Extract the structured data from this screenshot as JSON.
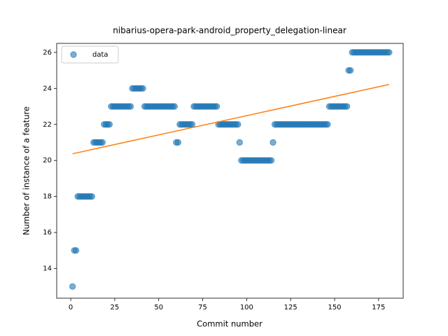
{
  "chart_data": [
    {
      "type": "scatter_fit",
      "title": "nibarius-opera-park-android_property_delegation-linear",
      "xlabel": "Commit number",
      "ylabel": "Number of instance of a feature",
      "xlim": [
        -8,
        189
      ],
      "ylim": [
        12.35,
        26.5
      ],
      "xticks": [
        0,
        25,
        50,
        75,
        100,
        125,
        150,
        175
      ],
      "yticks": [
        14,
        16,
        18,
        20,
        22,
        24,
        26
      ],
      "legend": "upper left",
      "series": [
        {
          "name": "data",
          "kind": "scatter",
          "color": "#1f77b4",
          "x": [
            1,
            2,
            3,
            4,
            5,
            6,
            7,
            8,
            9,
            10,
            11,
            12,
            13,
            14,
            15,
            16,
            17,
            18,
            19,
            20,
            21,
            22,
            23,
            24,
            25,
            26,
            27,
            28,
            29,
            30,
            31,
            32,
            33,
            34,
            35,
            36,
            37,
            38,
            39,
            40,
            41,
            42,
            43,
            44,
            45,
            46,
            47,
            48,
            49,
            50,
            51,
            52,
            53,
            54,
            55,
            56,
            57,
            58,
            59,
            60,
            61,
            62,
            63,
            64,
            65,
            66,
            67,
            68,
            69,
            70,
            71,
            72,
            73,
            74,
            75,
            76,
            77,
            78,
            79,
            80,
            81,
            82,
            83,
            84,
            85,
            86,
            87,
            88,
            89,
            90,
            91,
            92,
            93,
            94,
            95,
            96,
            97,
            98,
            99,
            100,
            101,
            102,
            103,
            104,
            105,
            106,
            107,
            108,
            109,
            110,
            111,
            112,
            113,
            114,
            115,
            116,
            117,
            118,
            119,
            120,
            121,
            122,
            123,
            124,
            125,
            126,
            127,
            128,
            129,
            130,
            131,
            132,
            133,
            134,
            135,
            136,
            137,
            138,
            139,
            140,
            141,
            142,
            143,
            144,
            145,
            146,
            147,
            148,
            149,
            150,
            151,
            152,
            153,
            154,
            155,
            156,
            157,
            158,
            159,
            160,
            161,
            162,
            163,
            164,
            165,
            166,
            167,
            168,
            169,
            170,
            171,
            172,
            173,
            174,
            175,
            176,
            177,
            178,
            179,
            180,
            181
          ],
          "values": [
            13,
            15,
            15,
            18,
            18,
            18,
            18,
            18,
            18,
            18,
            18,
            18,
            21,
            21,
            21,
            21,
            21,
            21,
            22,
            22,
            22,
            22,
            23,
            23,
            23,
            23,
            23,
            23,
            23,
            23,
            23,
            23,
            23,
            23,
            24,
            24,
            24,
            24,
            24,
            24,
            24,
            23,
            23,
            23,
            23,
            23,
            23,
            23,
            23,
            23,
            23,
            23,
            23,
            23,
            23,
            23,
            23,
            23,
            23,
            21,
            21,
            22,
            22,
            22,
            22,
            22,
            22,
            22,
            22,
            23,
            23,
            23,
            23,
            23,
            23,
            23,
            23,
            23,
            23,
            23,
            23,
            23,
            23,
            22,
            22,
            22,
            22,
            22,
            22,
            22,
            22,
            22,
            22,
            22,
            22,
            21,
            20,
            20,
            20,
            20,
            20,
            20,
            20,
            20,
            20,
            20,
            20,
            20,
            20,
            20,
            20,
            20,
            20,
            20,
            21,
            22,
            22,
            22,
            22,
            22,
            22,
            22,
            22,
            22,
            22,
            22,
            22,
            22,
            22,
            22,
            22,
            22,
            22,
            22,
            22,
            22,
            22,
            22,
            22,
            22,
            22,
            22,
            22,
            22,
            22,
            22,
            23,
            23,
            23,
            23,
            23,
            23,
            23,
            23,
            23,
            23,
            23,
            25,
            25,
            26,
            26,
            26,
            26,
            26,
            26,
            26,
            26,
            26,
            26,
            26,
            26,
            26,
            26,
            26,
            26,
            26,
            26,
            26,
            26,
            26,
            26
          ]
        },
        {
          "kind": "line",
          "color": "#ff7f0e",
          "x": [
            1,
            181
          ],
          "values": [
            20.37,
            24.22
          ]
        }
      ]
    }
  ]
}
